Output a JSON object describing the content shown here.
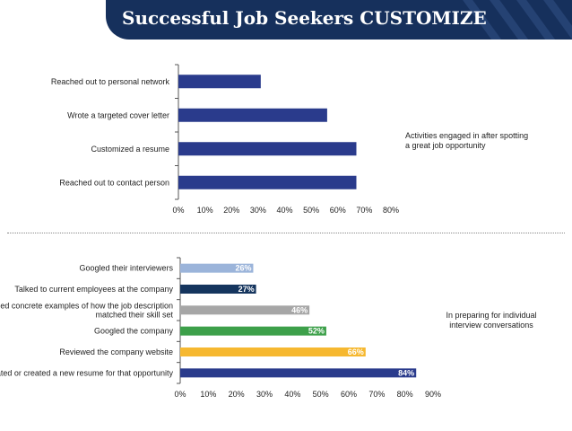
{
  "header": {
    "title": "Successful Job Seekers CUSTOMIZE"
  },
  "chart_data": [
    {
      "type": "bar",
      "orientation": "horizontal",
      "categories": [
        "Reached out to personal network",
        "Wrote a targeted cover letter",
        "Customized a resume",
        "Reached out to contact person"
      ],
      "values": [
        31,
        56,
        67,
        67
      ],
      "xticks": [
        "0%",
        "10%",
        "20%",
        "30%",
        "40%",
        "50%",
        "60%",
        "70%",
        "80%"
      ],
      "xlim": [
        0,
        80
      ],
      "bar_color": "#2a3b8c",
      "note": "Activities engaged in after spotting a great job opportunity"
    },
    {
      "type": "bar",
      "orientation": "horizontal",
      "categories": [
        "Googled their interviewers",
        "Talked to current employees at the company",
        "Brainstormed concrete examples of how the job description matched their skill set",
        "Googled the company",
        "Reviewed the company website",
        "Updated or created a new resume for that opportunity"
      ],
      "values": [
        26,
        27,
        46,
        52,
        66,
        84
      ],
      "data_labels": [
        "26%",
        "27%",
        "46%",
        "52%",
        "66%",
        "84%"
      ],
      "colors": [
        "#9bb4da",
        "#15355e",
        "#a6a6a6",
        "#3da04a",
        "#f6b830",
        "#2a3b8c"
      ],
      "xticks": [
        "0%",
        "10%",
        "20%",
        "30%",
        "40%",
        "50%",
        "60%",
        "70%",
        "80%",
        "90%"
      ],
      "xlim": [
        0,
        90
      ],
      "note": "In preparing for individual interview conversations"
    }
  ]
}
